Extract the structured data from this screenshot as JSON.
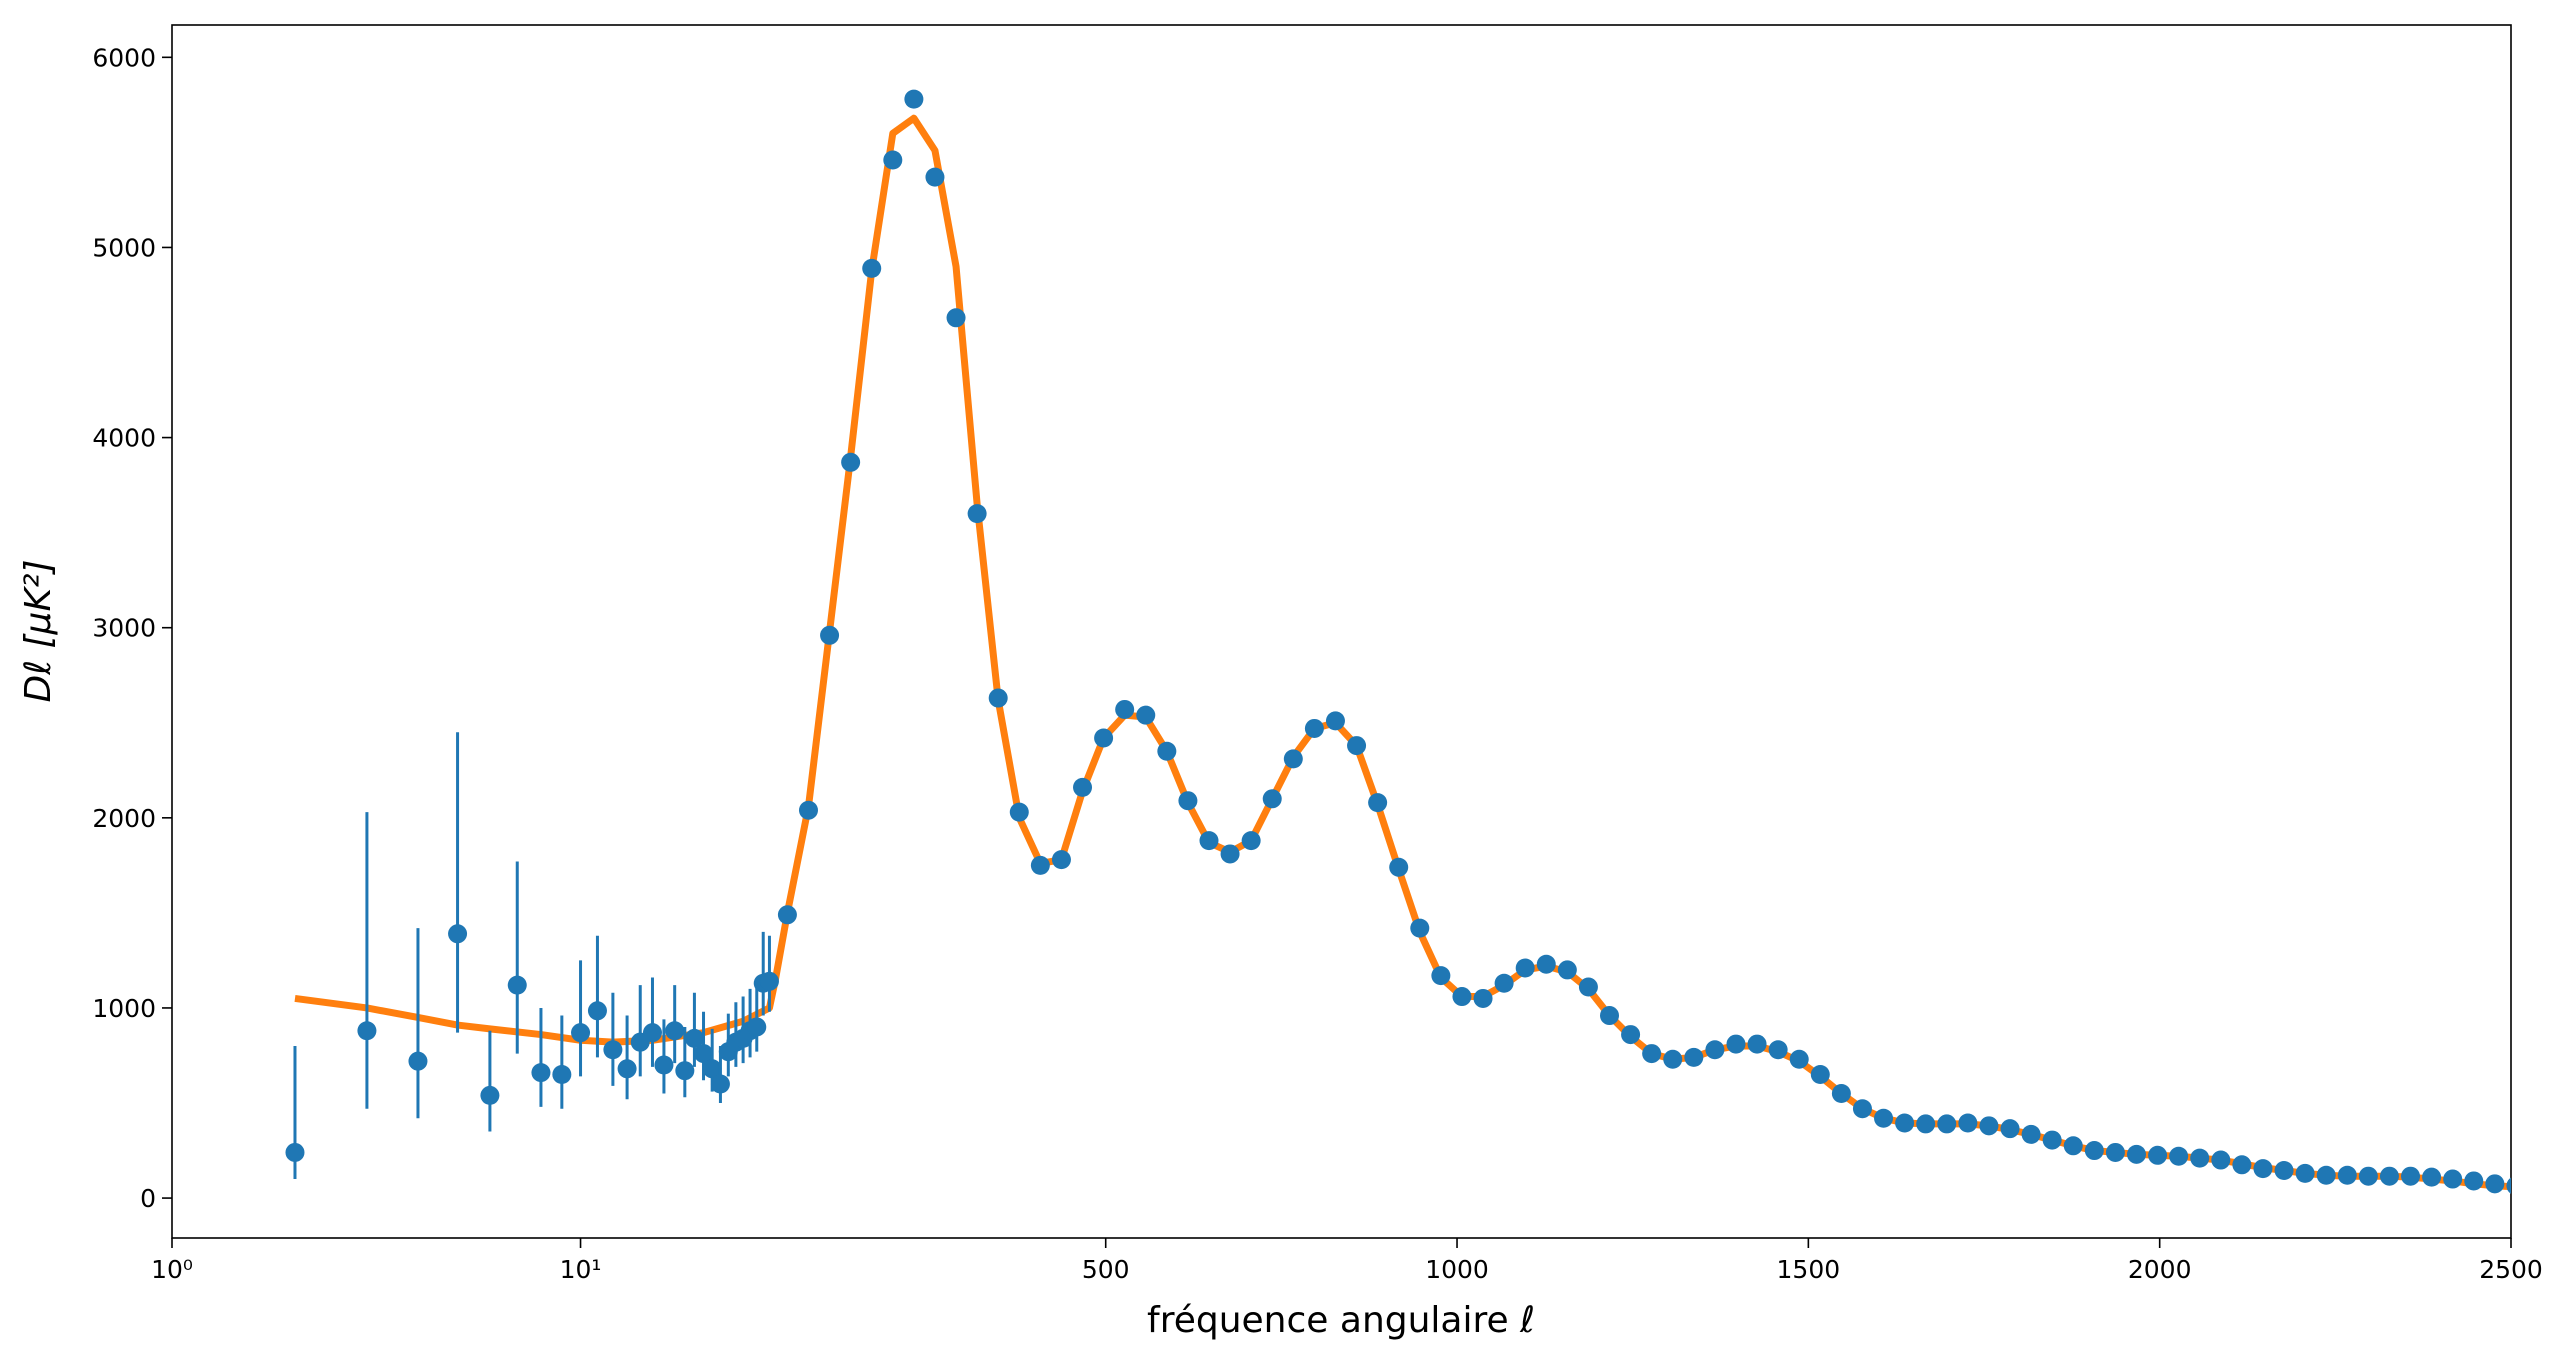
{
  "chart_data": {
    "type": "errorbar-line",
    "x_label": "fréquence angulaire ℓ",
    "y_label": "Dℓ [μK²]",
    "xscale": {
      "type": "log-then-linear",
      "switch": 30
    },
    "xlim": [
      1,
      2500
    ],
    "ylim": [
      -210,
      6170
    ],
    "xticks": [
      {
        "value": 1,
        "label": "10⁰"
      },
      {
        "value": 10,
        "label": "10¹"
      },
      500,
      1000,
      1500,
      2000,
      2500
    ],
    "yticks": [
      0,
      1000,
      2000,
      3000,
      4000,
      5000,
      6000
    ],
    "points": [
      {
        "color": "#1f77b4",
        "x": [
          2,
          3,
          4,
          5,
          6,
          7,
          8,
          9,
          10,
          11,
          12,
          13,
          14,
          15,
          16,
          17,
          18,
          19,
          20,
          21,
          22,
          23,
          24,
          25,
          26,
          27,
          28,
          29
        ],
        "values": [
          240,
          880,
          720,
          1390,
          540,
          1120,
          660,
          650,
          870,
          985,
          780,
          680,
          820,
          870,
          700,
          880,
          670,
          840,
          760,
          680,
          600,
          770,
          820,
          840,
          880,
          900,
          1130,
          1140
        ],
        "errors_low": [
          140,
          410,
          300,
          520,
          190,
          360,
          180,
          180,
          230,
          245,
          190,
          160,
          180,
          180,
          150,
          170,
          140,
          150,
          140,
          120,
          100,
          130,
          130,
          130,
          140,
          130,
          170,
          160
        ],
        "errors_high": [
          560,
          1150,
          700,
          1060,
          340,
          650,
          340,
          310,
          380,
          395,
          300,
          280,
          300,
          290,
          240,
          240,
          230,
          240,
          220,
          210,
          200,
          200,
          210,
          220,
          220,
          250,
          270,
          240
        ]
      },
      {
        "color": "#1f77b4",
        "x": [
          47,
          77,
          107,
          137,
          167,
          197,
          227,
          257,
          287,
          317,
          347,
          377,
          407,
          437,
          467,
          497,
          527,
          557,
          587,
          617,
          647,
          677,
          707,
          737,
          767,
          797,
          827,
          857,
          887,
          917,
          947,
          977,
          1007,
          1037,
          1067,
          1097,
          1127,
          1157,
          1187,
          1217,
          1247,
          1277,
          1307,
          1337,
          1367,
          1397,
          1427,
          1457,
          1487,
          1517,
          1547,
          1577,
          1607,
          1637,
          1667,
          1697,
          1727,
          1757,
          1787,
          1817,
          1847,
          1877,
          1907,
          1937,
          1967,
          1997,
          2027,
          2057,
          2087,
          2117,
          2147,
          2177,
          2207,
          2237,
          2267,
          2297,
          2327,
          2357,
          2387,
          2417,
          2447,
          2477,
          2507
        ],
        "values": [
          1490,
          2040,
          2960,
          3870,
          4890,
          5460,
          5780,
          5370,
          4630,
          3600,
          2630,
          2030,
          1750,
          1780,
          2160,
          2420,
          2570,
          2540,
          2350,
          2090,
          1880,
          1810,
          1880,
          2100,
          2310,
          2470,
          2510,
          2380,
          2080,
          1740,
          1420,
          1170,
          1060,
          1050,
          1130,
          1210,
          1230,
          1200,
          1110,
          960,
          860,
          760,
          730,
          740,
          780,
          810,
          810,
          780,
          730,
          650,
          550,
          470,
          420,
          395,
          390,
          390,
          395,
          380,
          365,
          335,
          305,
          275,
          250,
          240,
          230,
          225,
          220,
          210,
          200,
          175,
          155,
          145,
          130,
          120,
          120,
          115,
          115,
          115,
          110,
          100,
          90,
          75,
          65
        ]
      }
    ],
    "curve": {
      "color": "#ff7f0e",
      "x": [
        2,
        3,
        4,
        5,
        6,
        8,
        10,
        12,
        15,
        20,
        25,
        29,
        30,
        47,
        77,
        107,
        137,
        167,
        197,
        227,
        257,
        287,
        317,
        347,
        377,
        407,
        437,
        467,
        497,
        527,
        557,
        587,
        617,
        647,
        677,
        707,
        737,
        767,
        797,
        827,
        857,
        887,
        917,
        947,
        977,
        1007,
        1037,
        1067,
        1097,
        1127,
        1157,
        1187,
        1217,
        1247,
        1277,
        1307,
        1337,
        1367,
        1397,
        1427,
        1457,
        1487,
        1517,
        1547,
        1577,
        1607,
        1637,
        1667,
        1697,
        1727,
        1757,
        1787,
        1817,
        1847,
        1877,
        1907,
        1937,
        1967,
        1997,
        2027,
        2057,
        2087,
        2117,
        2147,
        2177,
        2207,
        2237,
        2267,
        2297,
        2327,
        2357,
        2387,
        2417,
        2447,
        2477,
        2500
      ],
      "values": [
        1050,
        1000,
        950,
        910,
        890,
        860,
        830,
        820,
        830,
        870,
        930,
        1000,
        1150,
        1500,
        2060,
        2980,
        3900,
        4880,
        5600,
        5680,
        5510,
        4900,
        3650,
        2620,
        2000,
        1760,
        1780,
        2140,
        2420,
        2540,
        2530,
        2350,
        2080,
        1870,
        1820,
        1880,
        2100,
        2320,
        2470,
        2500,
        2380,
        2070,
        1730,
        1400,
        1160,
        1060,
        1060,
        1120,
        1200,
        1220,
        1190,
        1100,
        960,
        850,
        760,
        730,
        740,
        780,
        800,
        800,
        770,
        720,
        640,
        550,
        470,
        420,
        395,
        390,
        390,
        390,
        380,
        360,
        335,
        305,
        275,
        250,
        240,
        230,
        225,
        220,
        210,
        200,
        180,
        160,
        145,
        130,
        120,
        115,
        115,
        115,
        110,
        100,
        90,
        75,
        65,
        60
      ]
    }
  }
}
